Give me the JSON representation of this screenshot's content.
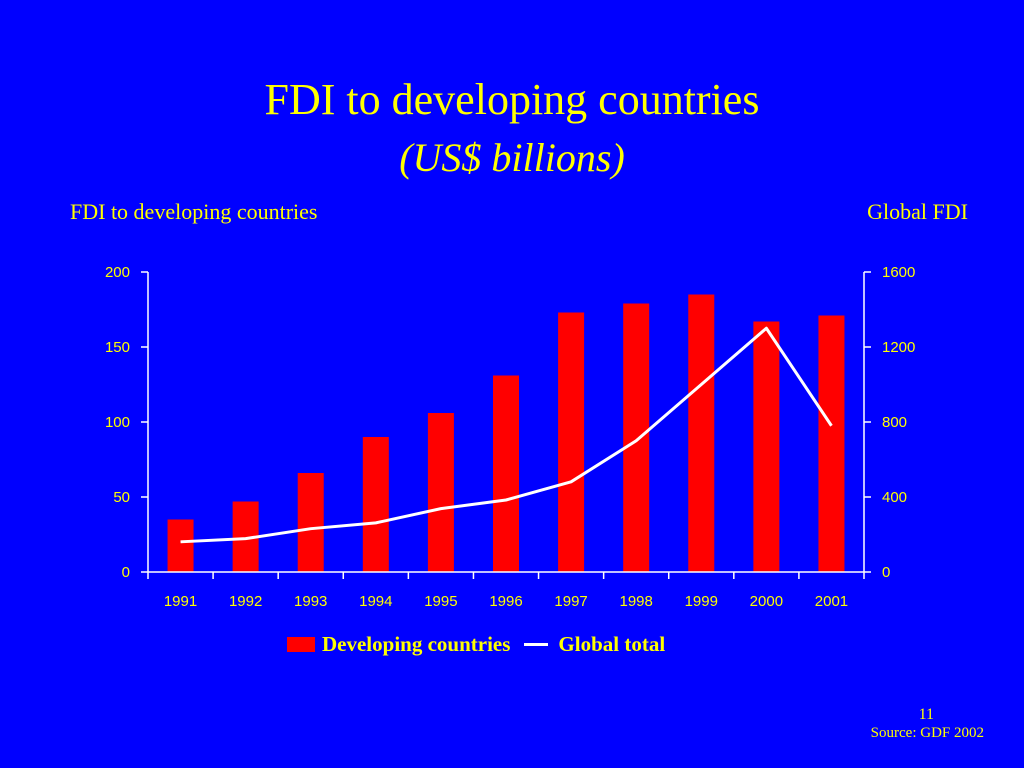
{
  "slide": {
    "title": "FDI to developing countries",
    "subtitle": "(US$ billions)",
    "page_number": "11",
    "source": "Source: GDF 2002"
  },
  "colors": {
    "background": "#0000ff",
    "text": "#ffff00",
    "bars": "#ff0000",
    "line": "#ffffff",
    "axis": "#ffffff"
  },
  "chart_data": {
    "type": "bar",
    "categories": [
      "1991",
      "1992",
      "1993",
      "1994",
      "1995",
      "1996",
      "1997",
      "1998",
      "1999",
      "2000",
      "2001"
    ],
    "series": [
      {
        "name": "Developing countries",
        "type": "bar",
        "axis": "left",
        "values": [
          35,
          47,
          66,
          90,
          106,
          131,
          173,
          179,
          185,
          167,
          171
        ]
      },
      {
        "name": "Global total",
        "type": "line",
        "axis": "right",
        "values": [
          161,
          178,
          231,
          262,
          338,
          384,
          481,
          700,
          1000,
          1300,
          780
        ]
      }
    ],
    "left_axis": {
      "label": "FDI to developing countries",
      "range": [
        0,
        200
      ],
      "ticks": [
        0,
        50,
        100,
        150,
        200
      ]
    },
    "right_axis": {
      "label": "Global FDI",
      "range": [
        0,
        1600
      ],
      "ticks": [
        0,
        400,
        800,
        1200,
        1600
      ]
    },
    "grid": false,
    "legend": "bottom-center"
  }
}
